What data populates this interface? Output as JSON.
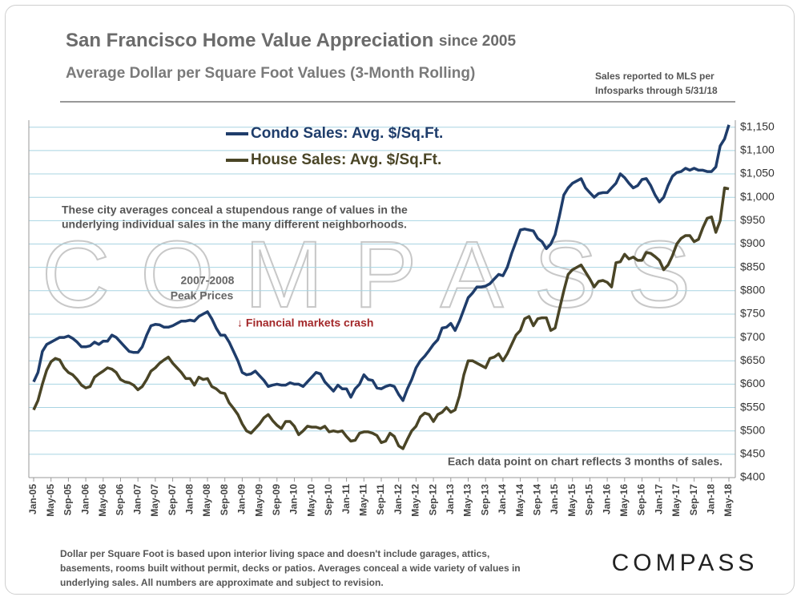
{
  "chart_data": {
    "type": "line",
    "title": "San Francisco Home Value Appreciation",
    "title_suffix": "since 2005",
    "subtitle": "Average Dollar per Square Foot Values (3-Month Rolling)",
    "source": [
      "Sales reported to MLS per",
      "Infosparks through 5/31/18"
    ],
    "watermark": "COMPASS",
    "annotations": {
      "peak": [
        "2007-2008",
        "Peak Prices"
      ],
      "crash": "↓ Financial markets crash",
      "conceal": [
        "These city averages conceal a stupendous range of values in the",
        "underlying individual sales in the many different neighborhoods."
      ],
      "each": "Each data point on chart reflects 3 months of sales."
    },
    "footnote": [
      "Dollar per Square Foot is based upon interior living space and doesn't include garages, attics,",
      "basements, rooms built without permit, decks or patios. Averages conceal a wide variety of values in",
      "underlying sales. All numbers are approximate and subject to revision."
    ],
    "logo": "COMPASS",
    "categories": [
      "Jan-05",
      null,
      null,
      null,
      "May-05",
      null,
      null,
      null,
      "Sep-05",
      null,
      null,
      null,
      "Jan-06",
      null,
      null,
      null,
      "May-06",
      null,
      null,
      null,
      "Sep-06",
      null,
      null,
      null,
      "Jan-07",
      null,
      null,
      null,
      "May-07",
      null,
      null,
      null,
      "Sep-07",
      null,
      null,
      null,
      "Jan-08",
      null,
      null,
      null,
      "May-08",
      null,
      null,
      null,
      "Sep-08",
      null,
      null,
      null,
      "Jan-09",
      null,
      null,
      null,
      "May-09",
      null,
      null,
      null,
      "Sep-09",
      null,
      null,
      null,
      "Jan-10",
      null,
      null,
      null,
      "May-10",
      null,
      null,
      null,
      "Sep-10",
      null,
      null,
      null,
      "Jan-11",
      null,
      null,
      null,
      "May-11",
      null,
      null,
      null,
      "Sep-11",
      null,
      null,
      null,
      "Jan-12",
      null,
      null,
      null,
      "May-12",
      null,
      null,
      null,
      "Sep-12",
      null,
      null,
      null,
      "Jan-13",
      null,
      null,
      null,
      "May-13",
      null,
      null,
      null,
      "Sep-13",
      null,
      null,
      null,
      "Jan-14",
      null,
      null,
      null,
      "May-14",
      null,
      null,
      null,
      "Sep-14",
      null,
      null,
      null,
      "Jan-15",
      null,
      null,
      null,
      "May-15",
      null,
      null,
      null,
      "Sep-15",
      null,
      null,
      null,
      "Jan-16",
      null,
      null,
      null,
      "May-16",
      null,
      null,
      null,
      "Sep-16",
      null,
      null,
      null,
      "Jan-17",
      null,
      null,
      null,
      "May-17",
      null,
      null,
      null,
      "Sep-17",
      null,
      null,
      null,
      "Jan-18",
      null,
      null,
      null,
      "May-18"
    ],
    "series": [
      {
        "name": "Condo Sales: Avg. $/Sq.Ft.",
        "color": "#1f3d6b",
        "values": [
          605,
          625,
          670,
          685,
          690,
          695,
          700,
          700,
          703,
          698,
          690,
          680,
          680,
          682,
          690,
          685,
          692,
          692,
          705,
          700,
          690,
          680,
          670,
          668,
          668,
          680,
          705,
          725,
          728,
          727,
          722,
          722,
          725,
          730,
          735,
          735,
          737,
          735,
          745,
          750,
          755,
          740,
          720,
          705,
          705,
          690,
          670,
          650,
          625,
          620,
          622,
          628,
          618,
          608,
          595,
          598,
          600,
          598,
          598,
          603,
          600,
          600,
          595,
          605,
          615,
          625,
          622,
          605,
          595,
          585,
          598,
          590,
          590,
          572,
          590,
          600,
          620,
          610,
          608,
          592,
          590,
          595,
          598,
          595,
          578,
          565,
          590,
          610,
          635,
          650,
          660,
          672,
          685,
          695,
          720,
          722,
          730,
          715,
          735,
          760,
          785,
          795,
          808,
          808,
          810,
          815,
          825,
          835,
          832,
          850,
          880,
          905,
          930,
          932,
          930,
          928,
          912,
          905,
          890,
          900,
          920,
          960,
          1005,
          1020,
          1030,
          1035,
          1040,
          1020,
          1010,
          1000,
          1008,
          1010,
          1010,
          1020,
          1030,
          1050,
          1042,
          1030,
          1020,
          1025,
          1038,
          1040,
          1025,
          1005,
          990,
          1000,
          1025,
          1045,
          1053,
          1055,
          1062,
          1058,
          1062,
          1058,
          1058,
          1055,
          1055,
          1065,
          1110,
          1125,
          1155
        ]
      },
      {
        "name": "House Sales: Avg. $/Sq.Ft.",
        "color": "#4a4526",
        "values": [
          545,
          565,
          600,
          630,
          648,
          655,
          652,
          635,
          625,
          620,
          610,
          598,
          592,
          595,
          615,
          622,
          628,
          635,
          632,
          625,
          610,
          605,
          603,
          598,
          588,
          595,
          610,
          628,
          635,
          645,
          652,
          658,
          645,
          635,
          625,
          612,
          612,
          598,
          615,
          610,
          612,
          595,
          590,
          582,
          580,
          560,
          548,
          535,
          515,
          500,
          495,
          505,
          515,
          528,
          535,
          522,
          512,
          505,
          520,
          520,
          510,
          492,
          500,
          510,
          508,
          508,
          505,
          510,
          498,
          500,
          498,
          500,
          488,
          478,
          480,
          495,
          498,
          498,
          495,
          490,
          475,
          478,
          495,
          488,
          468,
          462,
          482,
          500,
          510,
          530,
          538,
          535,
          520,
          535,
          540,
          550,
          540,
          545,
          575,
          620,
          650,
          650,
          645,
          640,
          635,
          655,
          658,
          665,
          650,
          665,
          685,
          705,
          715,
          740,
          745,
          725,
          740,
          742,
          742,
          715,
          720,
          760,
          800,
          835,
          845,
          850,
          855,
          840,
          825,
          808,
          820,
          822,
          818,
          808,
          860,
          862,
          878,
          868,
          872,
          865,
          865,
          882,
          880,
          873,
          865,
          845,
          855,
          875,
          900,
          912,
          918,
          918,
          905,
          910,
          935,
          955,
          958,
          925,
          950,
          1020,
          1018
        ]
      }
    ],
    "ylim": [
      400,
      1165
    ],
    "yticks": [
      {
        "value": 400,
        "label": "$400"
      },
      {
        "value": 450,
        "label": "$450"
      },
      {
        "value": 500,
        "label": "$500"
      },
      {
        "value": 550,
        "label": "$550"
      },
      {
        "value": 600,
        "label": "$600"
      },
      {
        "value": 650,
        "label": "$650"
      },
      {
        "value": 700,
        "label": "$700"
      },
      {
        "value": 750,
        "label": "$750"
      },
      {
        "value": 800,
        "label": "$800"
      },
      {
        "value": 850,
        "label": "$850"
      },
      {
        "value": 900,
        "label": "$900"
      },
      {
        "value": 950,
        "label": "$950"
      },
      {
        "value": 1000,
        "label": "$1,000"
      },
      {
        "value": 1050,
        "label": "$1,050"
      },
      {
        "value": 1100,
        "label": "$1,100"
      },
      {
        "value": 1150,
        "label": "$1,150"
      }
    ],
    "grid": true
  }
}
